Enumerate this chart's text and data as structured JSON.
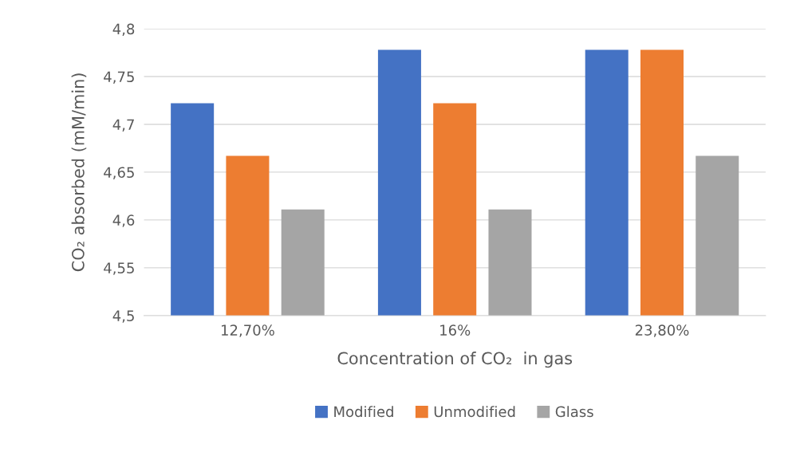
{
  "chart_data": {
    "type": "bar",
    "categories": [
      "12,70%",
      "16%",
      "23,80%"
    ],
    "series": [
      {
        "name": "Modified",
        "color": "#4472c4",
        "values": [
          4.722,
          4.778,
          4.778
        ]
      },
      {
        "name": "Unmodified",
        "color": "#ed7d31",
        "values": [
          4.667,
          4.722,
          4.778
        ]
      },
      {
        "name": "Glass",
        "color": "#a5a5a5",
        "values": [
          4.611,
          4.611,
          4.667
        ]
      }
    ],
    "xlabel": "Concentration of CO₂  in gas",
    "ylabel": "CO₂ absorbed (mM/min)",
    "ylim": [
      4.5,
      4.8
    ],
    "yticks": [
      {
        "value": 4.5,
        "label": "4,5"
      },
      {
        "value": 4.55,
        "label": "4,55"
      },
      {
        "value": 4.6,
        "label": "4,6"
      },
      {
        "value": 4.65,
        "label": "4,65"
      },
      {
        "value": 4.7,
        "label": "4,7"
      },
      {
        "value": 4.75,
        "label": "4,75"
      },
      {
        "value": 4.8,
        "label": "4,8"
      }
    ],
    "grid": "y",
    "legend": "bottom"
  }
}
